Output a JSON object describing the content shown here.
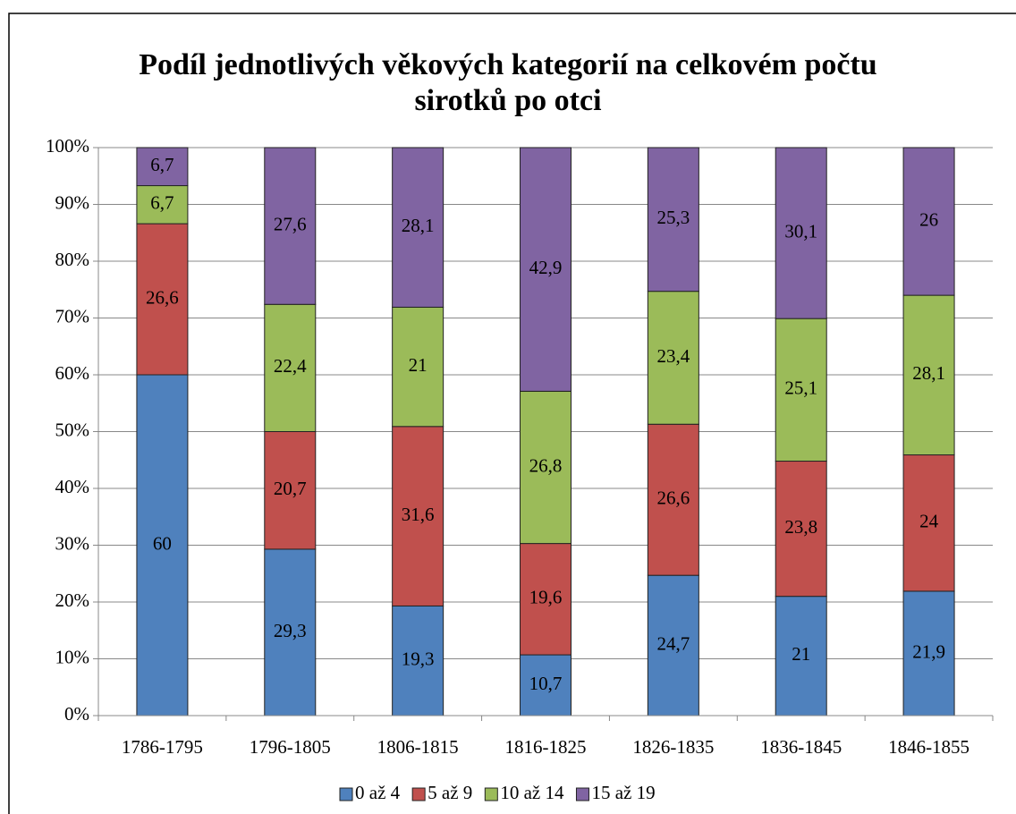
{
  "chart_data": {
    "type": "stacked_bar",
    "title": "Podíl jednotlivých věkových kategorií na celkovém počtu sirotků po otci",
    "categories": [
      "1786-1795",
      "1796-1805",
      "1806-1815",
      "1816-1825",
      "1826-1835",
      "1836-1845",
      "1846-1855"
    ],
    "series": [
      {
        "name": "0 až 4",
        "color": "#4f81bd",
        "values": [
          60,
          29.3,
          19.3,
          10.7,
          24.7,
          21,
          21.9
        ],
        "value_labels": [
          "60",
          "29,3",
          "19,3",
          "10,7",
          "24,7",
          "21",
          "21,9"
        ]
      },
      {
        "name": "5 až 9",
        "color": "#c0504d",
        "values": [
          26.6,
          20.7,
          31.6,
          19.6,
          26.6,
          23.8,
          24
        ],
        "value_labels": [
          "26,6",
          "20,7",
          "31,6",
          "19,6",
          "26,6",
          "23,8",
          "24"
        ]
      },
      {
        "name": "10 až 14",
        "color": "#9bbb59",
        "values": [
          6.7,
          22.4,
          21,
          26.8,
          23.4,
          25.1,
          28.1
        ],
        "value_labels": [
          "6,7",
          "22,4",
          "21",
          "26,8",
          "23,4",
          "25,1",
          "28,1"
        ]
      },
      {
        "name": "15 až 19",
        "color": "#8064a2",
        "values": [
          6.7,
          27.6,
          28.1,
          42.9,
          25.3,
          30.1,
          26
        ],
        "value_labels": [
          "6,7",
          "27,6",
          "28,1",
          "42,9",
          "25,3",
          "30,1",
          "26"
        ]
      }
    ],
    "ylim": [
      0,
      100
    ],
    "yticks": [
      {
        "value": 0,
        "label": "0%"
      },
      {
        "value": 10,
        "label": "10%"
      },
      {
        "value": 20,
        "label": "20%"
      },
      {
        "value": 30,
        "label": "30%"
      },
      {
        "value": 40,
        "label": "40%"
      },
      {
        "value": 50,
        "label": "50%"
      },
      {
        "value": 60,
        "label": "60%"
      },
      {
        "value": 70,
        "label": "70%"
      },
      {
        "value": 80,
        "label": "80%"
      },
      {
        "value": 90,
        "label": "90%"
      },
      {
        "value": 100,
        "label": "100%"
      }
    ],
    "grid": true,
    "legend": "bottom"
  }
}
